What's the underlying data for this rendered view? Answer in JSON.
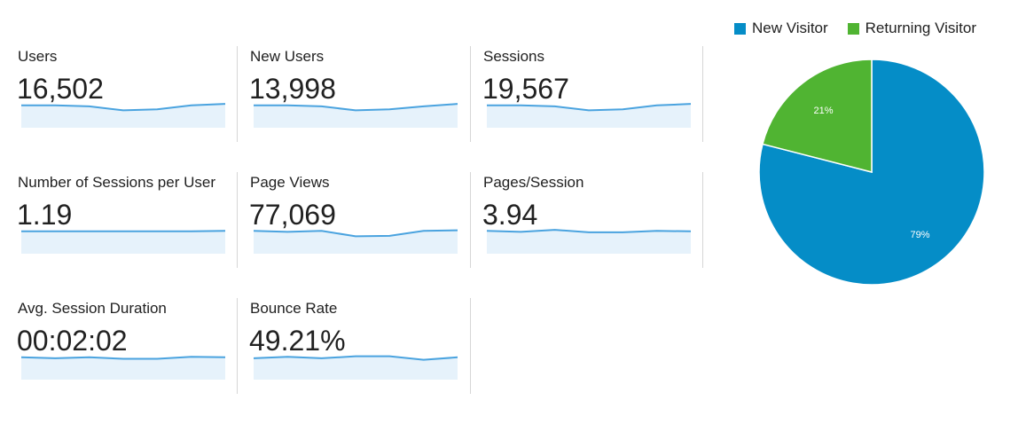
{
  "metrics": [
    {
      "label": "Users",
      "value": "16,502",
      "trend": [
        0.9,
        0.9,
        0.86,
        0.7,
        0.74,
        0.9,
        0.96
      ]
    },
    {
      "label": "New Users",
      "value": "13,998",
      "trend": [
        0.9,
        0.9,
        0.86,
        0.7,
        0.74,
        0.86,
        0.96
      ]
    },
    {
      "label": "Sessions",
      "value": "19,567",
      "trend": [
        0.9,
        0.9,
        0.86,
        0.7,
        0.74,
        0.9,
        0.96
      ]
    },
    {
      "label": "Number of Sessions per User",
      "value": "1.19",
      "trend": [
        0.9,
        0.9,
        0.9,
        0.9,
        0.9,
        0.9,
        0.92
      ]
    },
    {
      "label": "Page Views",
      "value": "77,069",
      "trend": [
        0.92,
        0.88,
        0.92,
        0.7,
        0.72,
        0.92,
        0.94
      ]
    },
    {
      "label": "Pages/Session",
      "value": "3.94",
      "trend": [
        0.92,
        0.88,
        0.96,
        0.86,
        0.86,
        0.92,
        0.9
      ]
    },
    {
      "label": "Avg. Session Duration",
      "value": "00:02:02",
      "trend": [
        0.9,
        0.86,
        0.9,
        0.84,
        0.84,
        0.92,
        0.9
      ]
    },
    {
      "label": "Bounce Rate",
      "value": "49.21%",
      "trend": [
        0.86,
        0.92,
        0.86,
        0.94,
        0.94,
        0.8,
        0.9
      ]
    }
  ],
  "chart_data": {
    "type": "pie",
    "series": [
      {
        "name": "New Visitor",
        "value": 79,
        "label": "79%",
        "color": "#058dc7"
      },
      {
        "name": "Returning Visitor",
        "value": 21,
        "label": "21%",
        "color": "#50b432"
      }
    ]
  },
  "colors": {
    "sparkline": "#4aa3df",
    "sparkfill": "#e6f2fb",
    "divider": "#d6d6d6"
  }
}
